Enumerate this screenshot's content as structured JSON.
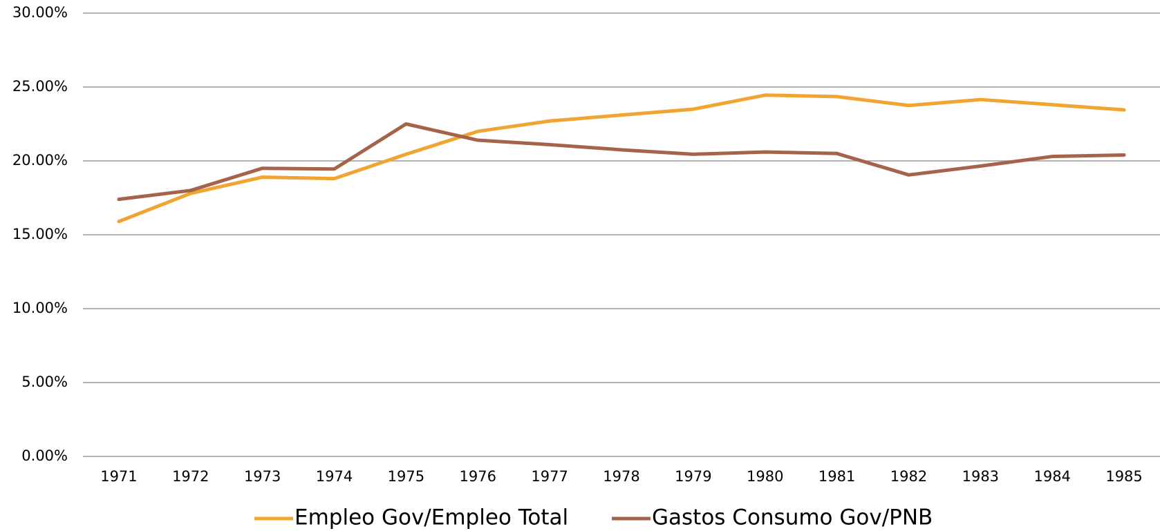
{
  "chart_data": {
    "type": "line",
    "categories": [
      "1971",
      "1972",
      "1973",
      "1974",
      "1975",
      "1976",
      "1977",
      "1978",
      "1979",
      "1980",
      "1981",
      "1982",
      "1983",
      "1984",
      "1985"
    ],
    "series": [
      {
        "name": "Empleo Gov/Empleo Total",
        "color": "#f0a431",
        "values": [
          15.9,
          17.8,
          18.9,
          18.8,
          20.45,
          22.0,
          22.7,
          23.1,
          23.5,
          24.45,
          24.35,
          23.75,
          24.15,
          23.8,
          23.45
        ]
      },
      {
        "name": "Gastos Consumo Gov/PNB",
        "color": "#a5634a",
        "values": [
          17.4,
          18.0,
          19.5,
          19.45,
          22.5,
          21.4,
          21.1,
          20.75,
          20.45,
          20.6,
          20.5,
          19.05,
          19.65,
          20.3,
          20.4
        ]
      }
    ],
    "ylim": [
      0,
      30
    ],
    "yticks": [
      {
        "value": 0,
        "label": "0.00%"
      },
      {
        "value": 5,
        "label": "5.00%"
      },
      {
        "value": 10,
        "label": "10.00%"
      },
      {
        "value": 15,
        "label": "15.00%"
      },
      {
        "value": 20,
        "label": "20.00%"
      },
      {
        "value": 25,
        "label": "25.00%"
      },
      {
        "value": 30,
        "label": "30.00%"
      }
    ],
    "grid": true,
    "legend": "bottom"
  }
}
